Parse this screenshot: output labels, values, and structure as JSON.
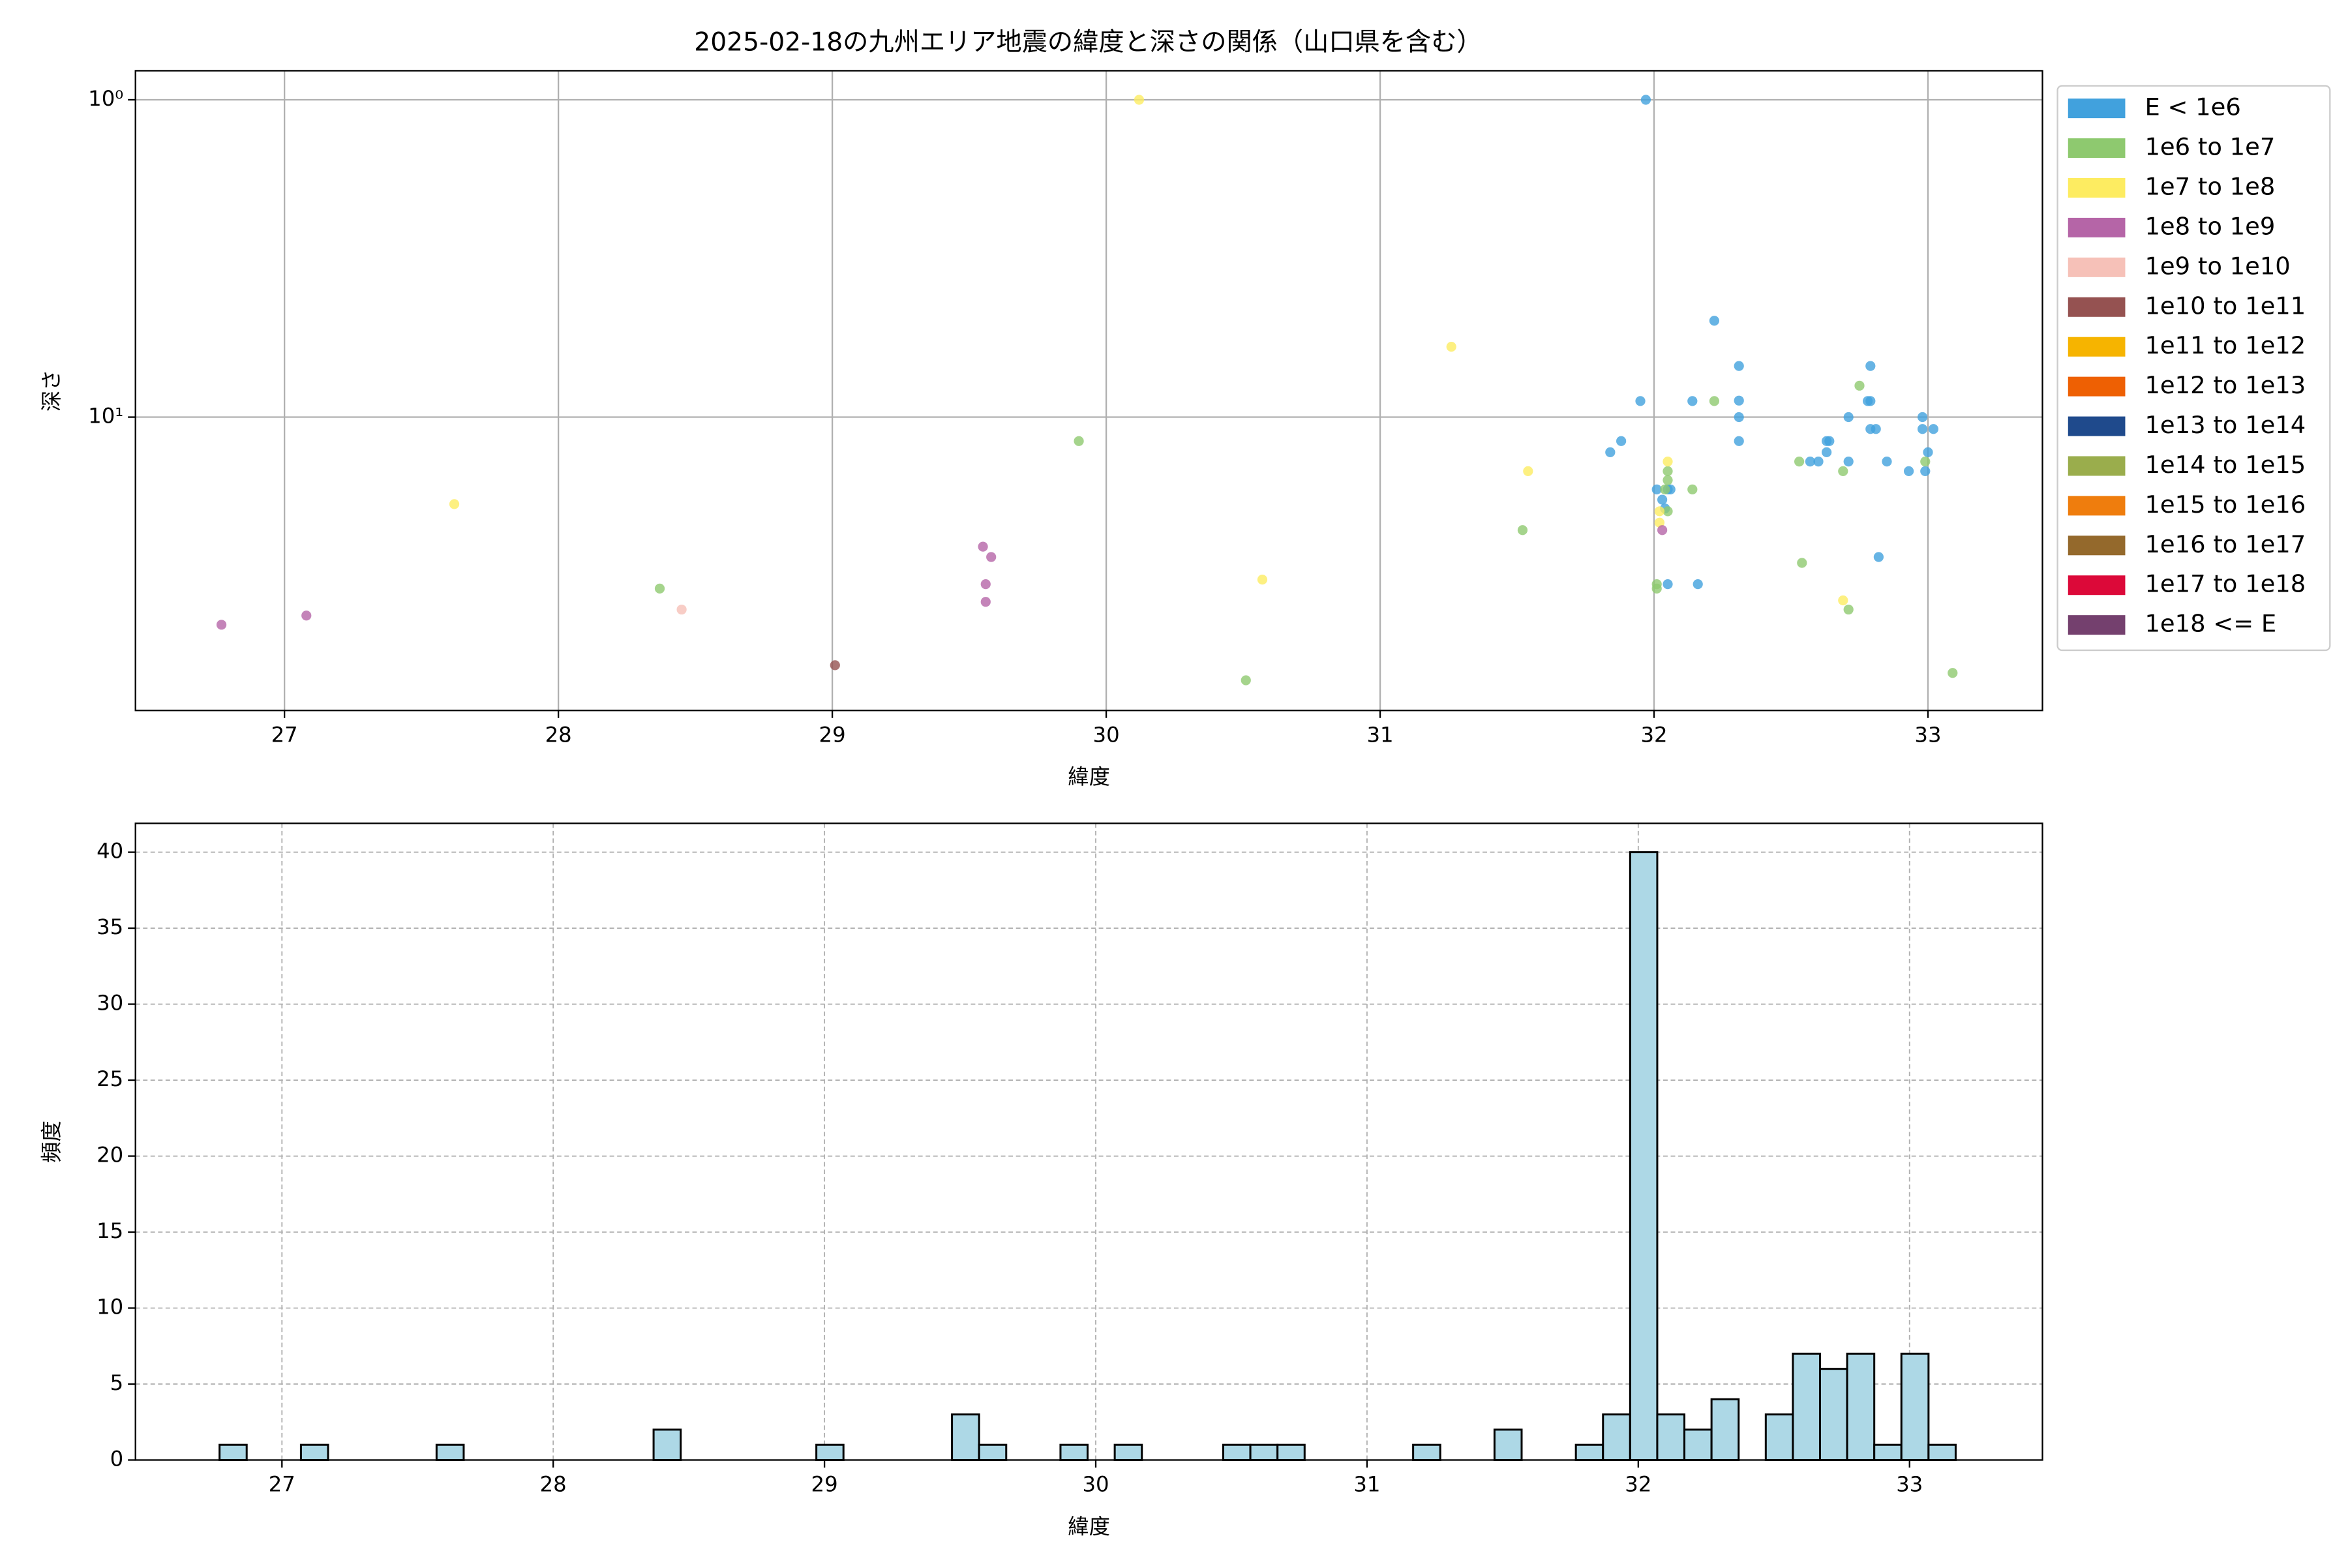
{
  "chart_data": [
    {
      "type": "scatter",
      "title": "2025-02-18の九州エリア地震の緯度と深さの関係（山口県を含む）",
      "x_label": "緯度",
      "y_label": "深さ",
      "log_y": true,
      "grid": true,
      "legend": "outside-right",
      "xlim": [
        26.456,
        33.418
      ],
      "xticks": [
        27,
        28,
        29,
        30,
        31,
        32,
        33
      ],
      "ylim": [
        84,
        0.81
      ],
      "yticks": [
        {
          "value": 1,
          "label": "10⁰"
        },
        {
          "value": 10,
          "label": "10¹"
        }
      ],
      "series": [
        {
          "name": "E < 1e6",
          "color": "#41a1dd",
          "x": [
            31.97,
            32.22,
            32.31,
            32.31,
            32.31,
            32.31,
            31.95,
            32.14,
            31.88,
            31.84,
            32.01,
            32.03,
            32.04,
            32.05,
            32.06,
            32.05,
            32.16,
            32.79,
            32.71,
            32.79,
            32.78,
            32.64,
            32.63,
            32.63,
            32.79,
            32.81,
            32.57,
            32.6,
            32.71,
            32.85,
            32.93,
            32.98,
            32.98,
            33.02,
            33.0,
            32.99,
            32.82
          ],
          "values": [
            1.0,
            4.97,
            6.9,
            8.87,
            10.0,
            11.9,
            8.9,
            8.9,
            11.9,
            12.9,
            16.9,
            18.2,
            19.4,
            16.9,
            16.9,
            33.6,
            33.6,
            6.9,
            10.0,
            8.9,
            8.9,
            11.9,
            11.9,
            12.9,
            10.9,
            10.9,
            13.8,
            13.8,
            13.8,
            13.8,
            14.8,
            10.0,
            10.9,
            10.9,
            12.9,
            14.8,
            27.6
          ]
        },
        {
          "name": "1e6 to 1e7",
          "color": "#8ec96f",
          "x": [
            29.9,
            28.37,
            30.51,
            31.52,
            32.01,
            32.01,
            32.05,
            32.05,
            32.04,
            32.05,
            32.14,
            32.22,
            32.75,
            32.53,
            32.69,
            32.54,
            32.99,
            33.09,
            32.71
          ],
          "values": [
            11.9,
            34.7,
            67.5,
            22.7,
            33.6,
            34.7,
            14.8,
            15.8,
            16.9,
            19.8,
            16.9,
            8.9,
            7.96,
            13.8,
            14.8,
            28.8,
            13.8,
            64,
            40.4
          ]
        },
        {
          "name": "1e7 to 1e8",
          "color": "#fdec61",
          "x": [
            30.12,
            31.26,
            27.62,
            31.54,
            30.57,
            32.05,
            32.02,
            32.02,
            32.69
          ],
          "values": [
            1.0,
            6.0,
            18.8,
            14.8,
            32.5,
            13.8,
            19.8,
            21.5,
            37.8
          ]
        },
        {
          "name": "1e8 to 1e9",
          "color": "#b565a7",
          "x": [
            26.77,
            27.08,
            29.55,
            29.58,
            29.56,
            29.56,
            32.03
          ],
          "values": [
            45.1,
            42.2,
            25.6,
            27.6,
            33.6,
            38.2,
            22.7
          ]
        },
        {
          "name": "1e9 to 1e10",
          "color": "#f6c1b8",
          "x": [
            28.45
          ],
          "values": [
            40.4
          ]
        },
        {
          "name": "1e10 to 1e11",
          "color": "#955251",
          "x": [
            29.01
          ],
          "values": [
            60.5
          ]
        },
        {
          "name": "1e11 to 1e12",
          "color": "#f6b400",
          "x": [],
          "values": []
        },
        {
          "name": "1e12 to 1e13",
          "color": "#ee6003",
          "x": [],
          "values": []
        },
        {
          "name": "1e13 to 1e14",
          "color": "#1f4a8c",
          "x": [],
          "values": []
        },
        {
          "name": "1e14 to 1e15",
          "color": "#9aad4c",
          "x": [],
          "values": []
        },
        {
          "name": "1e15 to 1e16",
          "color": "#ef7d0d",
          "x": [],
          "values": []
        },
        {
          "name": "1e16 to 1e17",
          "color": "#94692c",
          "x": [],
          "values": []
        },
        {
          "name": "1e17 to 1e18",
          "color": "#dc0939",
          "x": [],
          "values": []
        },
        {
          "name": "1e18 <= E",
          "color": "#74406e",
          "x": [],
          "values": []
        }
      ]
    },
    {
      "type": "histogram",
      "x_label": "緯度",
      "y_label": "頻度",
      "grid": true,
      "color": "#add8e6",
      "xlim": [
        26.46,
        33.49
      ],
      "xticks": [
        27,
        28,
        29,
        30,
        31,
        32,
        33
      ],
      "ylim": [
        0,
        41.9
      ],
      "yticks": [
        0,
        5,
        10,
        15,
        20,
        25,
        30,
        35,
        40
      ],
      "bins": [
        26.77,
        26.87,
        26.97,
        27.07,
        27.17,
        27.27,
        27.37,
        27.47,
        27.57,
        27.67,
        27.77,
        27.87,
        27.97,
        28.07,
        28.17,
        28.27,
        28.37,
        28.47,
        28.57,
        28.67,
        28.77,
        28.87,
        28.97,
        29.07,
        29.17,
        29.27,
        29.37,
        29.47,
        29.57,
        29.67,
        29.77,
        29.87,
        29.97,
        30.07,
        30.17,
        30.27,
        30.37,
        30.47,
        30.57,
        30.67,
        30.77,
        30.87,
        30.97,
        31.07,
        31.17,
        31.27,
        31.37,
        31.47,
        31.57,
        31.67,
        31.77,
        31.87,
        31.97,
        32.07,
        32.17,
        32.27,
        32.37,
        32.47,
        32.57,
        32.67,
        32.77,
        32.87,
        32.97,
        33.07,
        33.17
      ],
      "values": [
        1,
        0,
        0,
        1,
        0,
        0,
        0,
        0,
        1,
        0,
        0,
        0,
        0,
        0,
        0,
        0,
        2,
        0,
        0,
        0,
        0,
        0,
        1,
        0,
        0,
        0,
        0,
        3,
        1,
        0,
        0,
        1,
        0,
        1,
        0,
        0,
        0,
        1,
        1,
        1,
        0,
        0,
        0,
        0,
        1,
        0,
        0,
        2,
        0,
        0,
        1,
        3,
        40,
        3,
        2,
        4,
        0,
        3,
        7,
        6,
        7,
        1,
        7,
        1
      ]
    }
  ]
}
